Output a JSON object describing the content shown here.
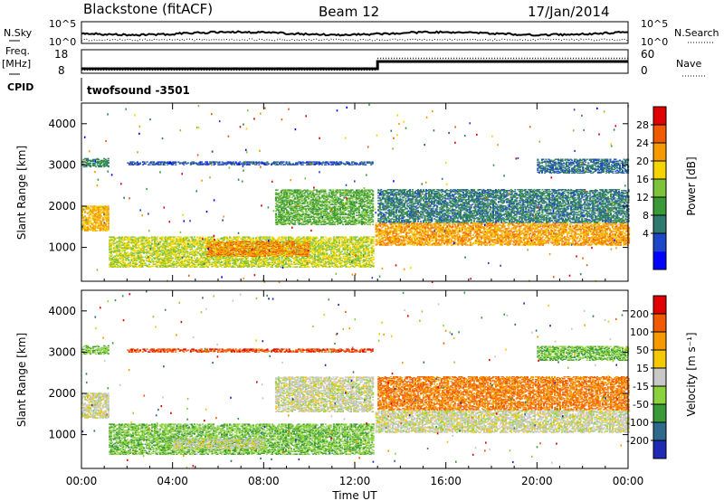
{
  "header": {
    "station": "Blackstone (fitACF)",
    "beam": "Beam 12",
    "date": "17/Jan/2014"
  },
  "noise_panel": {
    "left_label": "N.Sky",
    "right_label": "N.Search",
    "ticks_left": [
      "10^5",
      "10^0"
    ],
    "ticks_right": [
      "10^5",
      "10^0"
    ]
  },
  "freq_panel": {
    "left_label_top": "Freq.",
    "left_label_unit": "[MHz]",
    "right_label": "Nave",
    "left_ticks": [
      "18",
      "8"
    ],
    "right_ticks": [
      "60",
      "0"
    ],
    "switch_time_hr": 13.0,
    "freq_before_mhz": 10.5,
    "freq_after_mhz": 14.5,
    "nave_before": 10,
    "nave_after": 45
  },
  "cpid_panel": {
    "label": "CPID",
    "program": "twofsound  -3501"
  },
  "chart_data": [
    {
      "type": "heatmap",
      "panel": "power",
      "ylabel": "Slant Range [km]",
      "ylim": [
        180,
        4500
      ],
      "yticks": [
        1000,
        2000,
        3000,
        4000
      ],
      "xlim_hr": [
        0,
        24
      ],
      "xticks": [
        "00:00",
        "04:00",
        "08:00",
        "12:00",
        "16:00",
        "20:00",
        "00:00"
      ],
      "colorbar_label": "Power [dB]",
      "colorbar_ticks": [
        "28",
        "24",
        "20",
        "16",
        "12",
        "8",
        "4"
      ],
      "colors": [
        "#0000ff",
        "#1e46c8",
        "#2f7a6f",
        "#3a9a3a",
        "#7ec43a",
        "#f5d500",
        "#f59a00",
        "#f05a00",
        "#e00000"
      ],
      "vmin": 0,
      "vmax": 32,
      "features": [
        {
          "t0": 0.0,
          "t1": 1.2,
          "r0": 1400,
          "r1": 2000,
          "value": 22
        },
        {
          "t0": 0.0,
          "t1": 1.2,
          "r0": 2950,
          "r1": 3150,
          "value": 10
        },
        {
          "t0": 2.0,
          "t1": 12.8,
          "r0": 3000,
          "r1": 3080,
          "value": 6
        },
        {
          "t0": 1.2,
          "t1": 12.8,
          "r0": 520,
          "r1": 1250,
          "value": 18
        },
        {
          "t0": 5.5,
          "t1": 10.0,
          "r0": 780,
          "r1": 1150,
          "value": 24
        },
        {
          "t0": 8.5,
          "t1": 12.8,
          "r0": 1550,
          "r1": 2400,
          "value": 14
        },
        {
          "t0": 12.9,
          "t1": 24.0,
          "r0": 1050,
          "r1": 1600,
          "value": 23
        },
        {
          "t0": 13.0,
          "t1": 24.0,
          "r0": 1600,
          "r1": 2400,
          "value": 9
        },
        {
          "t0": 20.0,
          "t1": 24.0,
          "r0": 2800,
          "r1": 3150,
          "value": 8
        }
      ]
    },
    {
      "type": "heatmap",
      "panel": "velocity",
      "ylabel": "Slant Range [km]",
      "ylim": [
        180,
        4500
      ],
      "yticks": [
        1000,
        2000,
        3000,
        4000
      ],
      "xlim_hr": [
        0,
        24
      ],
      "xticks": [
        "00:00",
        "04:00",
        "08:00",
        "12:00",
        "16:00",
        "20:00",
        "00:00"
      ],
      "xlabel": "Time UT",
      "colorbar_label": "Velocity [m s⁻¹]",
      "colorbar_ticks": [
        "200",
        "100",
        "50",
        "15",
        "-15",
        "-50",
        "-100",
        "-200"
      ],
      "colors": [
        "#1e2ab4",
        "#2f6a8c",
        "#3a9a3a",
        "#8cd23c",
        "#c8c8c8",
        "#f5c800",
        "#f59a00",
        "#f05a00",
        "#e00000"
      ],
      "vmin": -250,
      "vmax": 250,
      "features": [
        {
          "t0": 0.0,
          "t1": 1.2,
          "r0": 1400,
          "r1": 2000,
          "value": 0
        },
        {
          "t0": 0.0,
          "t1": 1.2,
          "r0": 2950,
          "r1": 3150,
          "value": -60
        },
        {
          "t0": 2.0,
          "t1": 12.8,
          "r0": 3000,
          "r1": 3080,
          "value": 180
        },
        {
          "t0": 1.2,
          "t1": 12.8,
          "r0": 520,
          "r1": 1250,
          "value": -70
        },
        {
          "t0": 4.0,
          "t1": 8.0,
          "r0": 650,
          "r1": 900,
          "value": 0
        },
        {
          "t0": 8.5,
          "t1": 12.8,
          "r0": 1550,
          "r1": 2400,
          "value": 0
        },
        {
          "t0": 12.9,
          "t1": 24.0,
          "r0": 1050,
          "r1": 1600,
          "value": 0
        },
        {
          "t0": 13.0,
          "t1": 24.0,
          "r0": 1600,
          "r1": 2400,
          "value": 140
        },
        {
          "t0": 20.0,
          "t1": 24.0,
          "r0": 2800,
          "r1": 3150,
          "value": -80
        }
      ]
    }
  ]
}
